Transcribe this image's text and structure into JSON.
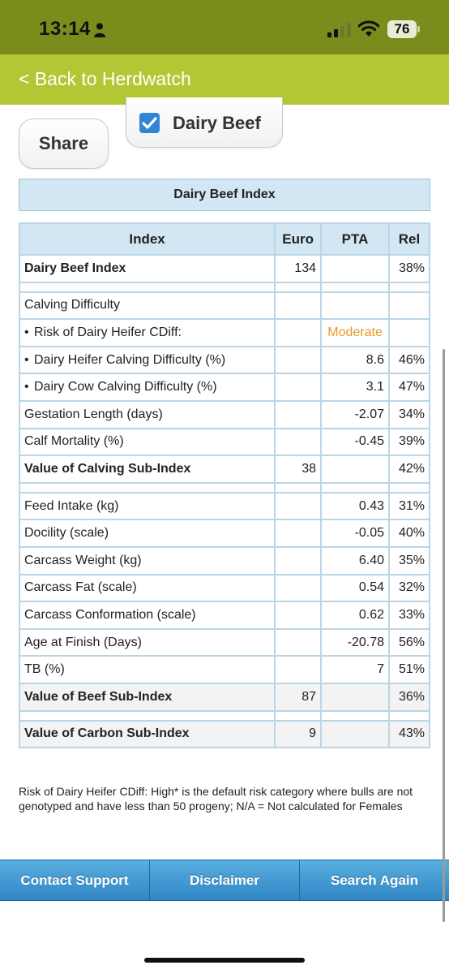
{
  "status": {
    "time": "13:14",
    "battery": "76"
  },
  "nav": {
    "back_label": "< Back to Herdwatch"
  },
  "buttons": {
    "share": "Share",
    "dairy_beef": "Dairy Beef"
  },
  "section_title": "Dairy Beef Index",
  "table": {
    "headers": [
      "Index",
      "Euro",
      "PTA",
      "Rel"
    ],
    "rows": [
      {
        "label": "Dairy Beef Index",
        "euro": "134",
        "pta": "",
        "rel": "38%"
      },
      {
        "label": "Calving Difficulty",
        "euro": "",
        "pta": "",
        "rel": ""
      },
      {
        "label": "Risk of Dairy Heifer CDiff:",
        "euro": "",
        "pta": "Moderate",
        "rel": ""
      },
      {
        "label": "Dairy Heifer Calving Difficulty (%)",
        "euro": "",
        "pta": "8.6",
        "rel": "46%"
      },
      {
        "label": "Dairy Cow Calving Difficulty (%)",
        "euro": "",
        "pta": "3.1",
        "rel": "47%"
      },
      {
        "label": "Gestation Length (days)",
        "euro": "",
        "pta": "-2.07",
        "rel": "34%"
      },
      {
        "label": "Calf Mortality (%)",
        "euro": "",
        "pta": "-0.45",
        "rel": "39%"
      },
      {
        "label": "Value of Calving Sub-Index",
        "euro": "38",
        "pta": "",
        "rel": "42%"
      },
      {
        "label": "Feed Intake (kg)",
        "euro": "",
        "pta": "0.43",
        "rel": "31%"
      },
      {
        "label": "Docility (scale)",
        "euro": "",
        "pta": "-0.05",
        "rel": "40%"
      },
      {
        "label": "Carcass Weight (kg)",
        "euro": "",
        "pta": "6.40",
        "rel": "35%"
      },
      {
        "label": "Carcass Fat (scale)",
        "euro": "",
        "pta": "0.54",
        "rel": "32%"
      },
      {
        "label": "Carcass Conformation (scale)",
        "euro": "",
        "pta": "0.62",
        "rel": "33%"
      },
      {
        "label": "Age at Finish (Days)",
        "euro": "",
        "pta": "-20.78",
        "rel": "56%"
      },
      {
        "label": "TB (%)",
        "euro": "",
        "pta": "7",
        "rel": "51%"
      },
      {
        "label": "Value of Beef Sub-Index",
        "euro": "87",
        "pta": "",
        "rel": "36%"
      },
      {
        "label": "Value of Carbon Sub-Index",
        "euro": "9",
        "pta": "",
        "rel": "43%"
      }
    ]
  },
  "footnote": "Risk of Dairy Heifer CDiff: High* is the default risk category where bulls are not genotyped and have less than 50 progeny; N/A = Not calculated for Females",
  "footer": {
    "contact": "Contact Support",
    "disclaimer": "Disclaimer",
    "search": "Search Again"
  },
  "colors": {
    "status_bar": "#7a8c1c",
    "nav_bar": "#b3c734",
    "header_fill": "#d2e7f3",
    "moderate": "#e69a22",
    "footer_blue": "#2f86c4"
  },
  "icons": [
    "person-icon",
    "signal-icon",
    "wifi-icon",
    "checkbox-check-icon"
  ]
}
